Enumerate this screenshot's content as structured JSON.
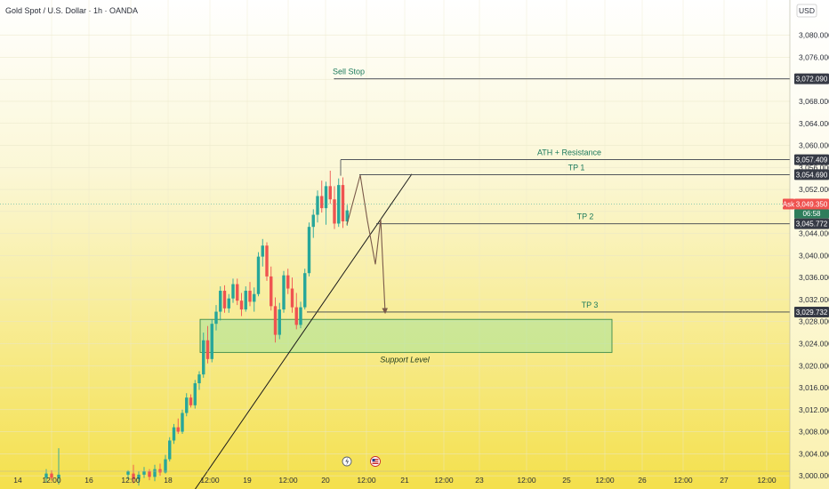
{
  "header": {
    "symbol_title": "Gold Spot / U.S. Dollar · 1h · OANDA"
  },
  "currency": "USD",
  "colors": {
    "up": "#26a69a",
    "down": "#ef5350",
    "text": "#2a2e39",
    "level_line": "#3a3f4a",
    "label_green": "#1c7a5c",
    "tag_dark": "#363a45",
    "ask_tag": "#ef5350",
    "price_tag": "#2e7d5b",
    "zone_fill": "#a8e39a",
    "zone_stroke": "#3b8a4a",
    "projection": "#7a5a4a",
    "bg_top": "#ffffff",
    "bg_bottom": "#f4e04c"
  },
  "chart_data": {
    "type": "candlestick",
    "ylim": [
      2998,
      3086
    ],
    "y_ticks": [
      "3,080.000",
      "3,076.000",
      "3,072.000",
      "3,068.000",
      "3,064.000",
      "3,060.000",
      "3,056.000",
      "3,052.000",
      "3,048.000",
      "3,044.000",
      "3,040.000",
      "3,036.000",
      "3,032.000",
      "3,028.000",
      "3,024.000",
      "3,020.000",
      "3,016.000",
      "3,012.000",
      "3,008.000",
      "3,004.000",
      "3,000.000"
    ],
    "x_ticks": [
      "14",
      "12:00",
      "16",
      "12:00",
      "18",
      "12:00",
      "19",
      "12:00",
      "20",
      "12:00",
      "21",
      "12:00",
      "23",
      "12:00",
      "25",
      "12:00",
      "26",
      "12:00",
      "27",
      "12:00"
    ],
    "candles": [
      [
        2999.6,
        3001.2,
        2998.8,
        3000.4
      ],
      [
        3000.4,
        3001.0,
        2999.0,
        2999.6
      ],
      [
        2999.6,
        3005.0,
        2998.4,
        3000.2
      ],
      [
        3000.2,
        3001.0,
        2999.4,
        3000.8
      ],
      [
        3000.4,
        3002.0,
        2998.6,
        2999.4
      ],
      [
        2999.4,
        3000.8,
        2998.2,
        3000.2
      ],
      [
        3000.2,
        3001.6,
        2999.6,
        3000.8
      ],
      [
        3000.8,
        3001.2,
        2999.2,
        2999.8
      ],
      [
        2999.8,
        3002.0,
        2999.0,
        3001.2
      ],
      [
        3001.2,
        3002.2,
        3000.0,
        3000.6
      ],
      [
        3000.6,
        3003.8,
        3000.4,
        3003.0
      ],
      [
        3003.0,
        3007.0,
        3002.6,
        3006.4
      ],
      [
        3006.4,
        3009.4,
        3005.8,
        3008.8
      ],
      [
        3008.8,
        3010.4,
        3007.6,
        3008.0
      ],
      [
        3008.0,
        3012.0,
        3007.6,
        3011.4
      ],
      [
        3011.4,
        3015.0,
        3010.8,
        3014.2
      ],
      [
        3014.2,
        3014.8,
        3012.4,
        3012.8
      ],
      [
        3012.8,
        3017.4,
        3012.2,
        3016.8
      ],
      [
        3016.8,
        3019.0,
        3015.6,
        3018.4
      ],
      [
        3018.4,
        3026.0,
        3017.8,
        3024.6
      ],
      [
        3024.6,
        3027.2,
        3020.4,
        3021.2
      ],
      [
        3021.2,
        3028.4,
        3020.6,
        3027.6
      ],
      [
        3027.6,
        3031.0,
        3026.4,
        3029.8
      ],
      [
        3029.8,
        3034.4,
        3028.2,
        3033.6
      ],
      [
        3033.6,
        3034.6,
        3029.6,
        3030.4
      ],
      [
        3030.4,
        3033.0,
        3029.6,
        3032.2
      ],
      [
        3032.2,
        3035.8,
        3031.4,
        3034.8
      ],
      [
        3034.8,
        3035.8,
        3031.0,
        3031.8
      ],
      [
        3031.8,
        3033.2,
        3029.0,
        3030.2
      ],
      [
        3030.2,
        3034.4,
        3029.8,
        3033.6
      ],
      [
        3033.6,
        3035.2,
        3030.8,
        3031.6
      ],
      [
        3031.6,
        3034.2,
        3029.8,
        3033.0
      ],
      [
        3033.0,
        3040.6,
        3032.6,
        3039.8
      ],
      [
        3039.8,
        3043.0,
        3038.0,
        3041.8
      ],
      [
        3041.8,
        3042.4,
        3035.4,
        3036.2
      ],
      [
        3036.2,
        3038.0,
        3030.0,
        3030.8
      ],
      [
        3030.8,
        3032.4,
        3024.2,
        3025.6
      ],
      [
        3025.6,
        3031.4,
        3024.8,
        3030.2
      ],
      [
        3030.2,
        3037.2,
        3029.6,
        3036.4
      ],
      [
        3036.4,
        3037.6,
        3033.0,
        3034.0
      ],
      [
        3034.0,
        3036.0,
        3029.6,
        3030.6
      ],
      [
        3030.6,
        3033.2,
        3026.6,
        3027.4
      ],
      [
        3027.4,
        3031.6,
        3026.8,
        3030.6
      ],
      [
        3030.6,
        3037.6,
        3030.2,
        3036.8
      ],
      [
        3036.8,
        3046.0,
        3036.2,
        3045.2
      ],
      [
        3045.2,
        3048.4,
        3043.2,
        3047.4
      ],
      [
        3047.4,
        3051.8,
        3046.0,
        3050.8
      ],
      [
        3050.8,
        3053.6,
        3047.8,
        3048.6
      ],
      [
        3048.6,
        3053.4,
        3045.6,
        3052.6
      ],
      [
        3052.6,
        3055.4,
        3049.4,
        3050.2
      ],
      [
        3050.2,
        3052.6,
        3044.8,
        3045.8
      ],
      [
        3045.8,
        3054.0,
        3045.2,
        3052.8
      ],
      [
        3052.8,
        3054.2,
        3045.0,
        3046.2
      ],
      [
        3046.2,
        3049.2,
        3045.4,
        3048.2
      ]
    ],
    "levels": [
      {
        "name": "Sell Stop",
        "price": 3072.09,
        "price_label": "3,072.090"
      },
      {
        "name": "ATH + Resistance",
        "price": 3057.409,
        "price_label": "3,057.409"
      },
      {
        "name": "TP 1",
        "price": 3054.69,
        "price_label": "3,054.690"
      },
      {
        "name": "TP 2",
        "price": 3045.772,
        "price_label": "3,045.772"
      },
      {
        "name": "TP 3",
        "price": 3029.732,
        "price_label": "3,029.732"
      }
    ],
    "ask": {
      "label": "Ask",
      "price": 3049.35,
      "price_label": "3,049.350",
      "countdown": "06:58"
    },
    "support_zone": {
      "label": "Support Level",
      "top": 3028.4,
      "bottom": 3022.4
    },
    "trendline": {
      "from_price": 2997.0,
      "to_price": 3054.8
    },
    "projection_prices": [
      3045.6,
      3054.6,
      3046.4,
      3038.4,
      3046.6,
      3029.6
    ]
  }
}
